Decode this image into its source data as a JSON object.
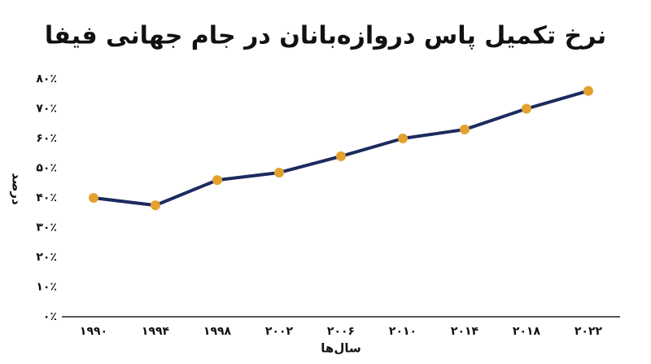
{
  "chart_data": {
    "type": "line",
    "title": "نرخ تکمیل پاس دروازه‌بانان در جام جهانی فیفا",
    "x_label": "سال‌ها",
    "y_label": "درصد",
    "categories": [
      "۱۹۹۰",
      "۱۹۹۴",
      "۱۹۹۸",
      "۲۰۰۲",
      "۲۰۰۶",
      "۲۰۱۰",
      "۲۰۱۴",
      "۲۰۱۸",
      "۲۰۲۲"
    ],
    "values": [
      40,
      37.5,
      46,
      48.5,
      54,
      60,
      63,
      70,
      76
    ],
    "color": "#1c2b5e",
    "marker_color": "#e3a12f",
    "ylim": [
      0,
      80
    ],
    "yticks": [
      {
        "value": 0,
        "label": "۰٪"
      },
      {
        "value": 10,
        "label": "۱۰٪"
      },
      {
        "value": 20,
        "label": "۲۰٪"
      },
      {
        "value": 30,
        "label": "۳۰٪"
      },
      {
        "value": 40,
        "label": "۴۰٪"
      },
      {
        "value": 50,
        "label": "۵۰٪"
      },
      {
        "value": 60,
        "label": "۶۰٪"
      },
      {
        "value": 70,
        "label": "۷۰٪"
      },
      {
        "value": 80,
        "label": "۸۰٪"
      }
    ],
    "grid": false
  }
}
